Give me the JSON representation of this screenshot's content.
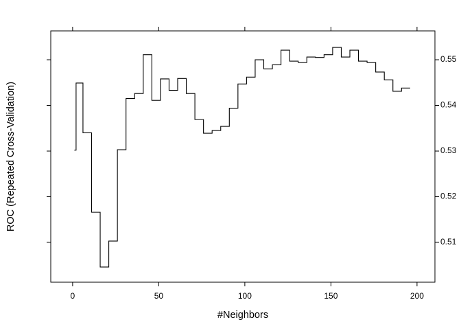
{
  "chart_data": {
    "type": "step",
    "x_label": "#Neighbors",
    "y_label": "ROC (Repeated Cross-Validation)",
    "color": "#000000",
    "x": [
      1,
      2,
      6,
      11,
      16,
      21,
      26,
      31,
      36,
      41,
      46,
      51,
      56,
      61,
      66,
      71,
      76,
      81,
      86,
      91,
      96,
      101,
      106,
      111,
      116,
      121,
      126,
      131,
      136,
      141,
      146,
      151,
      156,
      161,
      166,
      171,
      176,
      181,
      186,
      191,
      196
    ],
    "values": [
      0.5302,
      0.5449,
      0.534,
      0.5166,
      0.5046,
      0.5103,
      0.5303,
      0.5415,
      0.5426,
      0.5511,
      0.5411,
      0.5458,
      0.5433,
      0.5459,
      0.5426,
      0.5369,
      0.5339,
      0.5345,
      0.5354,
      0.5394,
      0.5447,
      0.5462,
      0.55,
      0.548,
      0.5489,
      0.5521,
      0.5497,
      0.5494,
      0.5506,
      0.5505,
      0.5511,
      0.5527,
      0.5506,
      0.5521,
      0.5497,
      0.5494,
      0.5473,
      0.5456,
      0.5431,
      0.5438,
      0.5438
    ],
    "xlim": [
      -12.7,
      210.4
    ],
    "ylim": [
      0.50128,
      0.55632
    ],
    "xticks": [
      0,
      50,
      100,
      150,
      200
    ],
    "yticks": [
      0.51,
      0.52,
      0.53,
      0.54,
      0.55
    ]
  }
}
